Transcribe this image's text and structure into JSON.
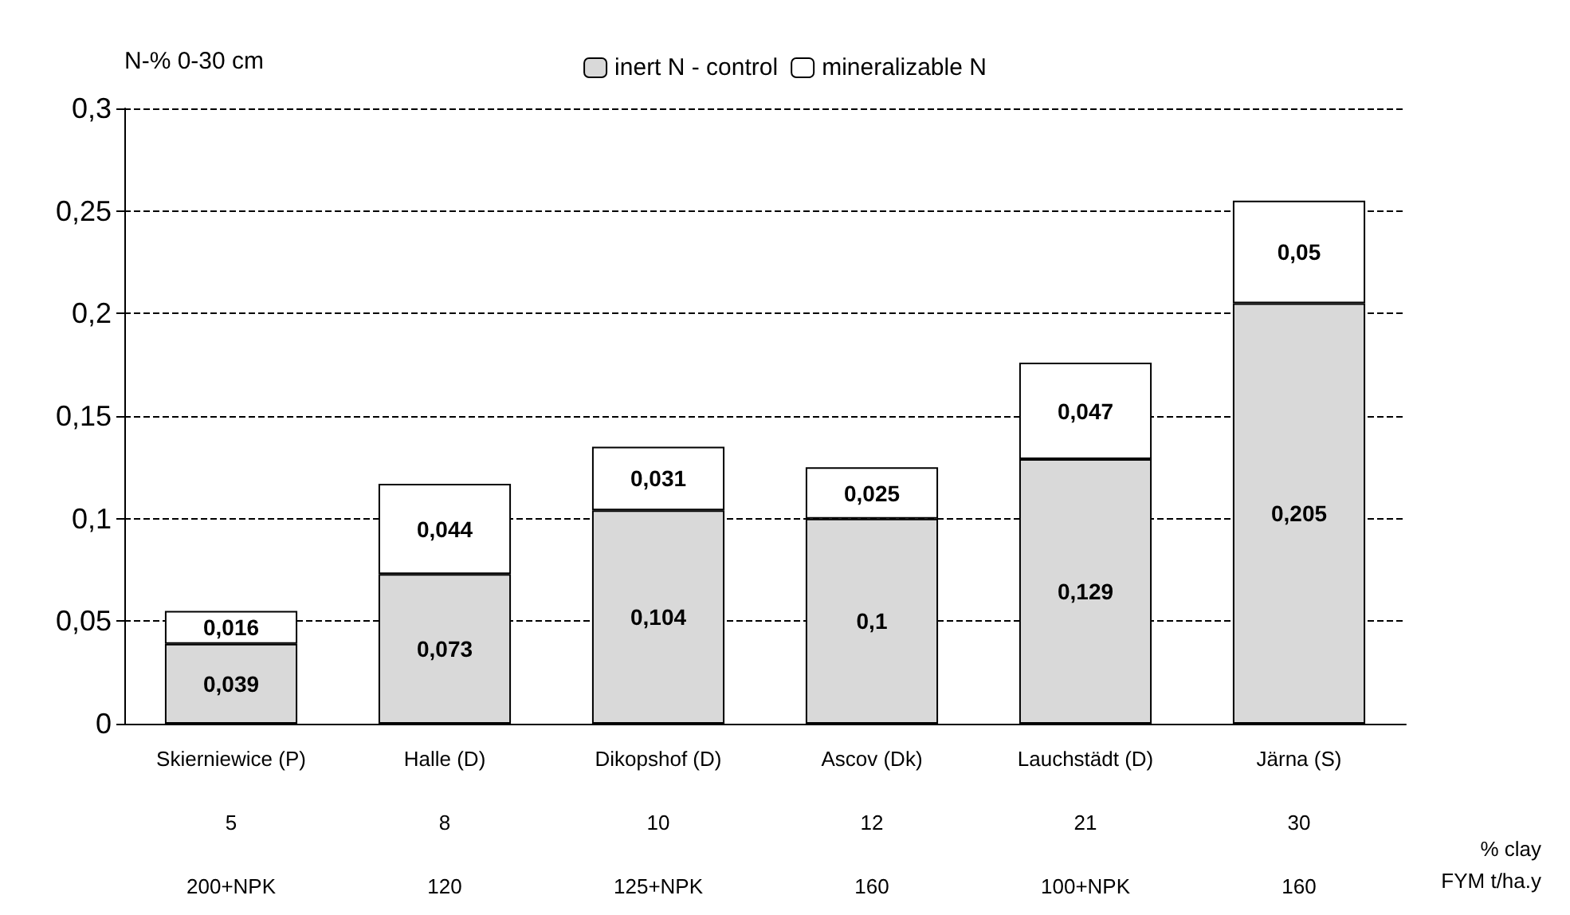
{
  "chart_data": {
    "type": "bar",
    "stacked": true,
    "ylabel": "N-% 0-30 cm",
    "categories": [
      "Skierniewice (P)\n\n5\n\n200+NPK",
      "Halle (D)\n\n8\n\n120",
      "Dikopshof (D)\n\n10\n\n125+NPK",
      "Ascov (Dk)\n\n12\n\n160",
      "Lauchstädt (D)\n\n21\n\n100+NPK",
      "Järna (S)\n\n30\n\n160"
    ],
    "series": [
      {
        "name": "inert N - control",
        "color": "#d9d9d9",
        "values": [
          0.039,
          0.073,
          0.104,
          0.1,
          0.129,
          0.205
        ],
        "value_labels": [
          "0,039",
          "0,073",
          "0,104",
          "0,1",
          "0,129",
          "0,205"
        ]
      },
      {
        "name": "mineralizable N",
        "color": "#ffffff",
        "values": [
          0.016,
          0.044,
          0.031,
          0.025,
          0.047,
          0.05
        ],
        "value_labels": [
          "0,016",
          "0,044",
          "0,031",
          "0,025",
          "0,047",
          "0,05"
        ]
      }
    ],
    "ylim": [
      0,
      0.3
    ],
    "yticks": [
      {
        "value": 0,
        "label": "0"
      },
      {
        "value": 0.05,
        "label": "0,05"
      },
      {
        "value": 0.1,
        "label": "0,1"
      },
      {
        "value": 0.15,
        "label": "0,15"
      },
      {
        "value": 0.2,
        "label": "0,2"
      },
      {
        "value": 0.25,
        "label": "0,25"
      },
      {
        "value": 0.3,
        "label": "0,3"
      }
    ],
    "grid": "y",
    "legend": "top",
    "annotations": [
      "% clay",
      "FYM t/ha.y"
    ]
  }
}
